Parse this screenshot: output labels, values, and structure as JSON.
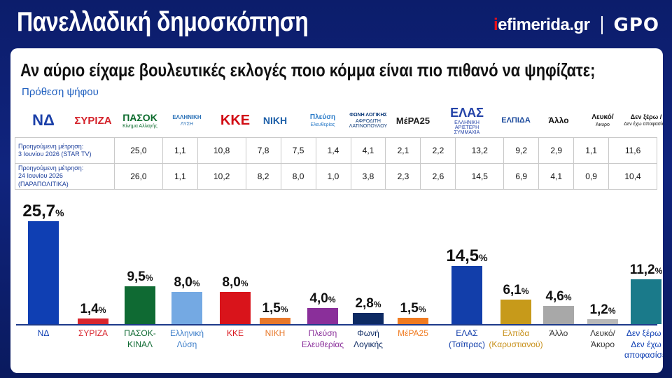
{
  "header": {
    "title": "Πανελλαδική δημοσκόπηση",
    "brand_i": "i",
    "brand_rest": "efimerida.gr",
    "brand_gpo": "GPO"
  },
  "card": {
    "question": "Αν αύριο είχαμε βουλευτικές εκλογές ποιο κόμμα είναι πιο πιθανό να ψηφίζατε;",
    "subtitle": "Πρόθεση ψήφου"
  },
  "logos": [
    {
      "main": "ΝΔ",
      "sub": "",
      "color": "#1a3fa8"
    },
    {
      "main": "ΣΥΡΙΖΑ",
      "sub": "",
      "color": "#d4232b"
    },
    {
      "main": "ΠΑΣΟΚ",
      "sub": "Κίνημα Αλλαγής",
      "color": "#0b6b2c"
    },
    {
      "main": "ΕΛΛΗΝΙΚΗ",
      "sub": "ΛΥΣΗ",
      "color": "#2d73b8"
    },
    {
      "main": "ΚΚΕ",
      "sub": "",
      "color": "#d10c14"
    },
    {
      "main": "ΝΙΚΗ",
      "sub": "",
      "color": "#1d5fa8"
    },
    {
      "main": "Πλεύση",
      "sub": "Ελευθερίας",
      "color": "#2a7bc8"
    },
    {
      "main": "ΦΩΝΗ ΛΟΓΙΚΗΣ",
      "sub": "ΑΦΡΟΔΙΤΗ ΛΑΤΙΝΟΠΟΥΛΟΥ",
      "color": "#0c3a7a"
    },
    {
      "main": "ΜέΡΑ25",
      "sub": "",
      "color": "#222"
    },
    {
      "main": "ΕΛΑΣ",
      "sub": "ΕΛΛΗΝΙΚΗ ΑΡΙΣΤΕΡΗ ΣΥΜΜΑΧΙΑ",
      "color": "#2443a8"
    },
    {
      "main": "ΕΛΠΙΔΑ",
      "sub": "",
      "color": "#1b4a9c"
    },
    {
      "main": "Άλλο",
      "sub": "",
      "color": "#111"
    },
    {
      "main": "Λευκό/",
      "sub": "Άκυρο",
      "color": "#111"
    },
    {
      "main": "Δεν ξέρω /",
      "sub": "Δεν έχω αποφασίσει",
      "color": "#111"
    }
  ],
  "table": {
    "rows": [
      {
        "label1": "Προηγούμενη μέτρηση:",
        "label2": "3 Ιουνίου 2026 (STAR TV)",
        "values": [
          "25,0",
          "1,1",
          "10,8",
          "7,8",
          "7,5",
          "1,4",
          "4,1",
          "2,1",
          "2,2",
          "13,2",
          "9,2",
          "2,9",
          "1,1",
          "11,6"
        ]
      },
      {
        "label1": "Προηγούμενη μέτρηση:",
        "label2": "24 Ιουνίου 2026 (ΠΑΡΑΠΟΛΙΤΙΚΑ)",
        "values": [
          "26,0",
          "1,1",
          "10,2",
          "8,2",
          "8,0",
          "1,0",
          "3,8",
          "2,3",
          "2,6",
          "14,5",
          "6,9",
          "4,1",
          "0,9",
          "10,4"
        ]
      }
    ]
  },
  "chart_data": {
    "type": "bar",
    "title": "Πρόθεση ψήφου",
    "categories": [
      "ΝΔ",
      "ΣΥΡΙΖΑ",
      "ΠΑΣΟΚ-ΚΙΝΑΛ",
      "Ελληνική Λύση",
      "ΚΚΕ",
      "ΝΙΚΗ",
      "Πλεύση Ελευθερίας",
      "Φωνή Λογικής",
      "ΜέΡΑ25",
      "ΕΛΑΣ (Τσίπρας)",
      "Ελπίδα (Καρυστιανού)",
      "Άλλο",
      "Λευκό/ Άκυρο",
      "Δεν ξέρω / Δεν έχω αποφασίσει"
    ],
    "category_lines": [
      [
        "ΝΔ"
      ],
      [
        "ΣΥΡΙΖΑ"
      ],
      [
        "ΠΑΣΟΚ-",
        "ΚΙΝΑΛ"
      ],
      [
        "Ελληνική",
        "Λύση"
      ],
      [
        "ΚΚΕ"
      ],
      [
        "ΝΙΚΗ"
      ],
      [
        "Πλεύση",
        "Ελευθερίας"
      ],
      [
        "Φωνή",
        "Λογικής"
      ],
      [
        "ΜέΡΑ25"
      ],
      [
        "ΕΛΑΣ",
        "(Τσίπρας)"
      ],
      [
        "Ελπίδα",
        "(Καρυστιανού)"
      ],
      [
        "Άλλο"
      ],
      [
        "Λευκό/",
        "Άκυρο"
      ],
      [
        "Δεν ξέρω /",
        "Δεν έχω",
        "αποφασίσει"
      ]
    ],
    "values": [
      25.7,
      1.4,
      9.5,
      8.0,
      8.0,
      1.5,
      4.0,
      2.8,
      1.5,
      14.5,
      6.1,
      4.6,
      1.2,
      11.2
    ],
    "value_labels": [
      "25,7",
      "1,4",
      "9,5",
      "8,0",
      "8,0",
      "1,5",
      "4,0",
      "2,8",
      "1,5",
      "14,5",
      "6,1",
      "4,6",
      "1,2",
      "11,2"
    ],
    "unit": "%",
    "colors": [
      "#0f3fb3",
      "#d8262e",
      "#0f6a33",
      "#74a9e3",
      "#d9141b",
      "#e8782a",
      "#8a2f9a",
      "#0d2a63",
      "#f07a1f",
      "#123eaa",
      "#c79a1a",
      "#a8a8a8",
      "#b8b8b8",
      "#1a7a8a"
    ],
    "label_colors": [
      "#0f3fb3",
      "#d8262e",
      "#0f6a33",
      "#3a7cc8",
      "#d9141b",
      "#e8782a",
      "#8a2f9a",
      "#0d2a63",
      "#f07a1f",
      "#123eaa",
      "#c7901a",
      "#333333",
      "#333333",
      "#0f3fb3"
    ],
    "ylim": [
      0,
      28
    ]
  }
}
